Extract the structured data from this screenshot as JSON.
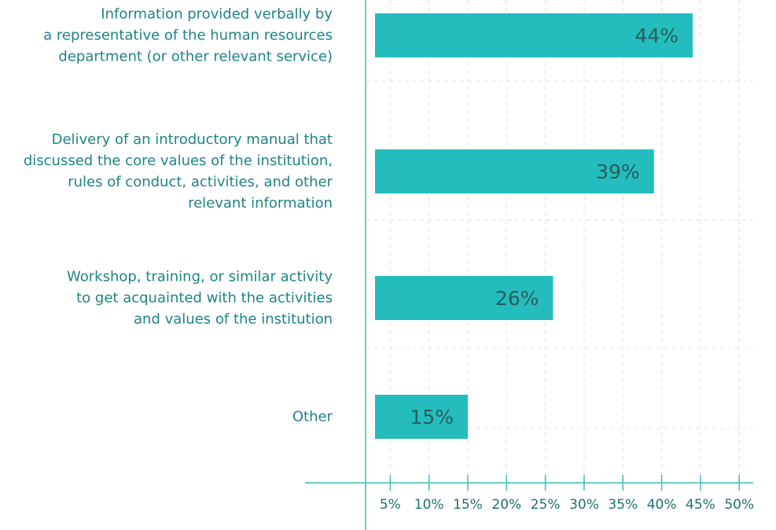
{
  "chart_data": {
    "type": "barh",
    "categories": [
      "Information provided verbally by\na representative of the human resources\ndepartment (or other relevant service)",
      "Delivery of an introductory manual that\ndiscussed the core values of the institution,\nrules of conduct, activities, and other\nrelevant information",
      "Workshop, training, or similar activity\nto get acquainted with the activities\nand values of the institution",
      "Other"
    ],
    "values": [
      44,
      39,
      26,
      15
    ],
    "value_labels": [
      "44%",
      "39%",
      "26%",
      "15%"
    ],
    "color": "#24bcbc",
    "xlim": [
      0,
      52
    ],
    "xticks": [
      {
        "value": 5,
        "label": "5%"
      },
      {
        "value": 10,
        "label": "10%"
      },
      {
        "value": 15,
        "label": "15%"
      },
      {
        "value": 20,
        "label": "20%"
      },
      {
        "value": 25,
        "label": "25%"
      },
      {
        "value": 30,
        "label": "30%"
      },
      {
        "value": 35,
        "label": "35%"
      },
      {
        "value": 40,
        "label": "40%"
      },
      {
        "value": 45,
        "label": "45%"
      },
      {
        "value": 50,
        "label": "50%"
      }
    ],
    "grid": true
  }
}
